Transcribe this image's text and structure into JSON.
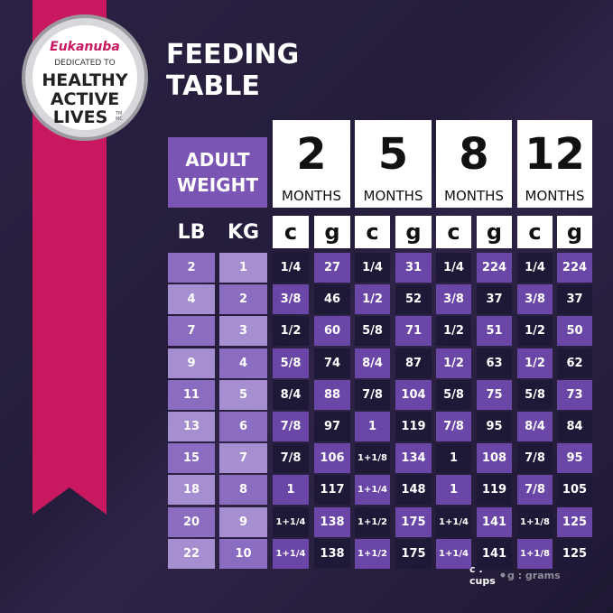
{
  "badge": {
    "brand": "Eukanuba",
    "line1": "DEDICATED TO",
    "line2": "HEALTHY",
    "line3": "ACTIVE",
    "line4": "LIVES",
    "mark": "TM MC"
  },
  "title": "FEEDING TABLE",
  "table": {
    "weight_header": "ADULT WEIGHT",
    "ages": [
      {
        "number": "2",
        "unit": "MONTHS"
      },
      {
        "number": "5",
        "unit": "MONTHS"
      },
      {
        "number": "8",
        "unit": "MONTHS"
      },
      {
        "number": "12",
        "unit": "MONTHS"
      }
    ],
    "columns": [
      "LB",
      "KG",
      "c",
      "g",
      "c",
      "g",
      "c",
      "g",
      "c",
      "g"
    ],
    "rows": [
      [
        "2",
        "1",
        "1/4",
        "27",
        "1/4",
        "31",
        "1/4",
        "224",
        "1/4",
        "224"
      ],
      [
        "4",
        "2",
        "3/8",
        "46",
        "1/2",
        "52",
        "3/8",
        "37",
        "3/8",
        "37"
      ],
      [
        "7",
        "3",
        "1/2",
        "60",
        "5/8",
        "71",
        "1/2",
        "51",
        "1/2",
        "50"
      ],
      [
        "9",
        "4",
        "5/8",
        "74",
        "8/4",
        "87",
        "1/2",
        "63",
        "1/2",
        "62"
      ],
      [
        "11",
        "5",
        "8/4",
        "88",
        "7/8",
        "104",
        "5/8",
        "75",
        "5/8",
        "73"
      ],
      [
        "13",
        "6",
        "7/8",
        "97",
        "1",
        "119",
        "7/8",
        "95",
        "8/4",
        "84"
      ],
      [
        "15",
        "7",
        "7/8",
        "106",
        "1+1/8",
        "134",
        "1",
        "108",
        "7/8",
        "95"
      ],
      [
        "18",
        "8",
        "1",
        "117",
        "1+1/4",
        "148",
        "1",
        "119",
        "7/8",
        "105"
      ],
      [
        "20",
        "9",
        "1+1/4",
        "138",
        "1+1/2",
        "175",
        "1+1/4",
        "141",
        "1+1/8",
        "125"
      ],
      [
        "22",
        "10",
        "1+1/4",
        "138",
        "1+1/2",
        "175",
        "1+1/4",
        "141",
        "1+1/8",
        "125"
      ]
    ]
  },
  "legend": [
    "c : cups",
    "g : grams"
  ]
}
